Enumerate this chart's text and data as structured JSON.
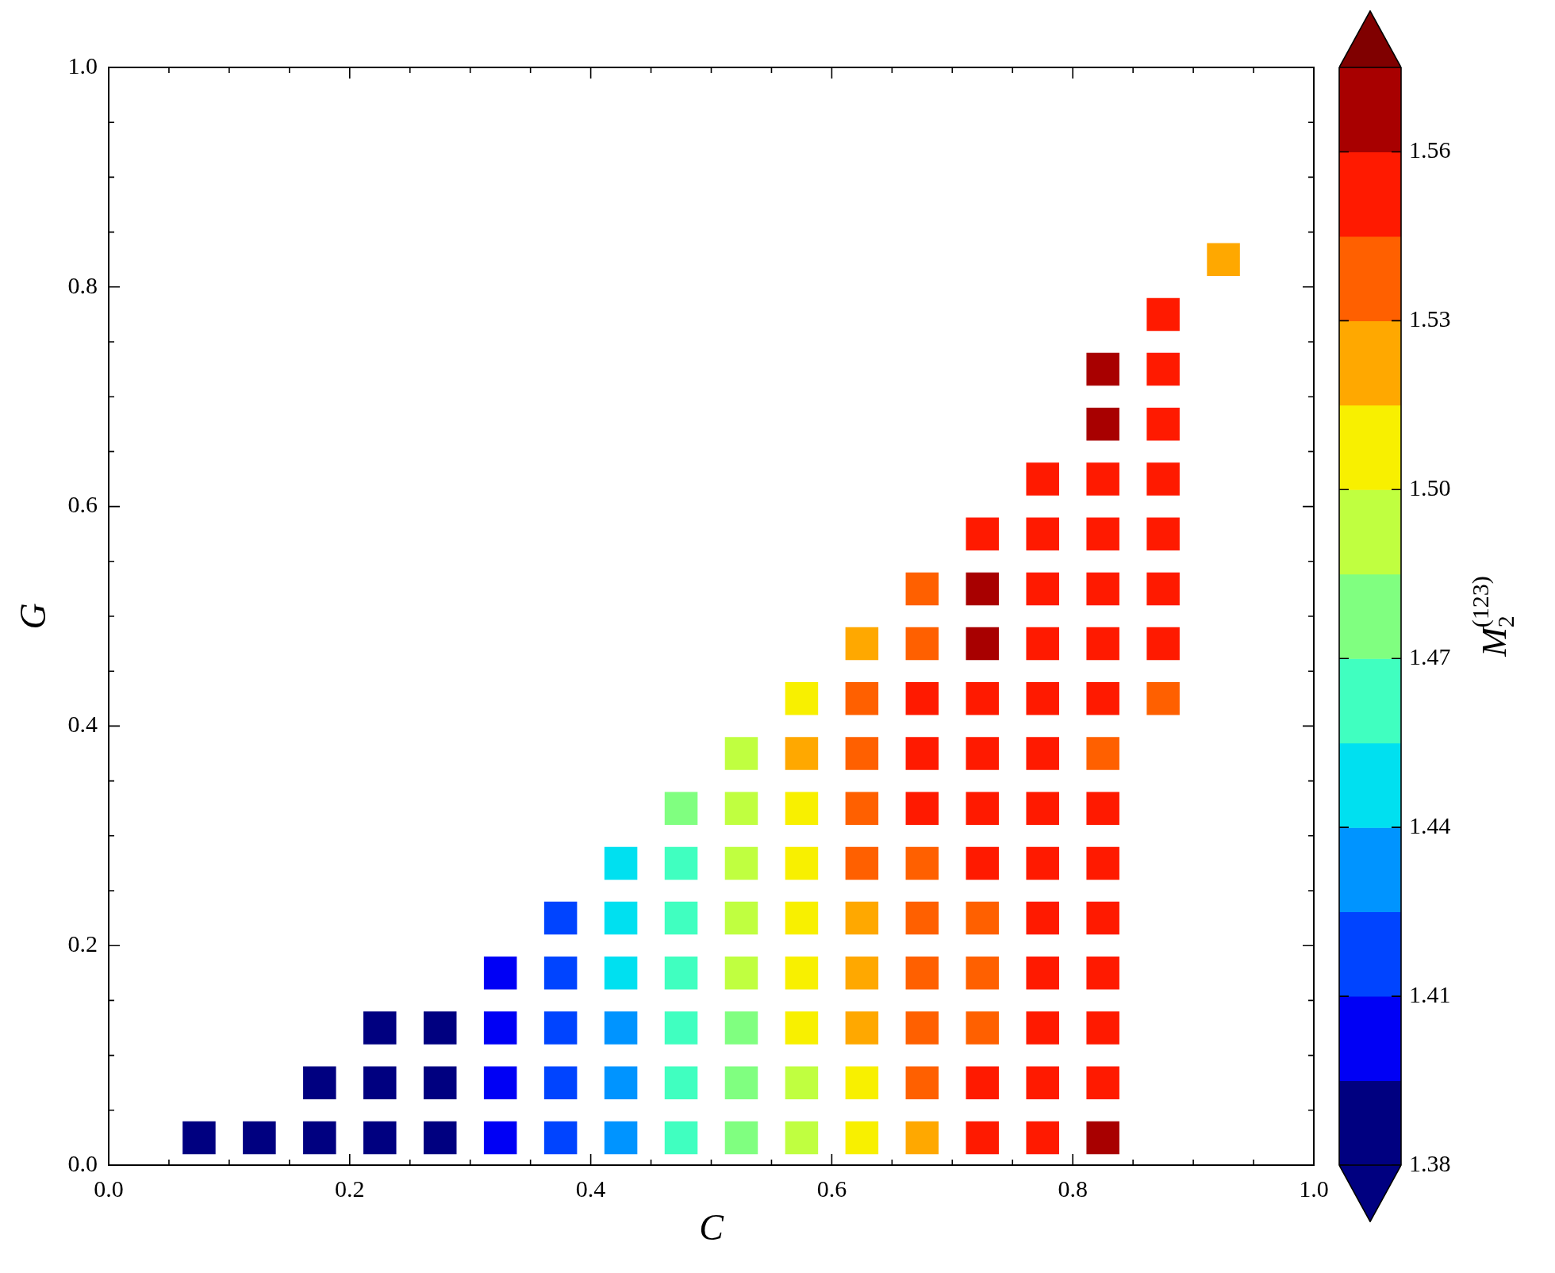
{
  "chart_data": {
    "type": "scatter",
    "xlabel": "C",
    "ylabel": "G",
    "clabel": "M$_{2}$$^{(123)}$",
    "marker": "square",
    "xlim": [
      0,
      1
    ],
    "ylim": [
      0,
      1
    ],
    "xticks": [
      {
        "value": 0,
        "label": "0.0"
      },
      {
        "value": 0.05,
        "label": null
      },
      {
        "value": 0.1,
        "label": null
      },
      {
        "value": 0.15,
        "label": null
      },
      0.2,
      {
        "value": 0.25,
        "label": null
      },
      {
        "value": 0.3,
        "label": null
      },
      {
        "value": 0.35,
        "label": null
      },
      0.4,
      {
        "value": 0.45,
        "label": null
      },
      {
        "value": 0.5,
        "label": null
      },
      {
        "value": 0.55,
        "label": null
      },
      0.6,
      {
        "value": 0.65,
        "label": null
      },
      {
        "value": 0.7,
        "label": null
      },
      {
        "value": 0.75,
        "label": null
      },
      0.8,
      {
        "value": 0.85,
        "label": null
      },
      {
        "value": 0.9,
        "label": null
      },
      {
        "value": 0.95,
        "label": null
      },
      {
        "value": 1,
        "label": "1.0"
      }
    ],
    "yticks": [
      {
        "value": 0,
        "label": "0.0"
      },
      {
        "value": 0.05,
        "label": null
      },
      {
        "value": 0.1,
        "label": null
      },
      {
        "value": 0.15,
        "label": null
      },
      0.2,
      {
        "value": 0.25,
        "label": null
      },
      {
        "value": 0.3,
        "label": null
      },
      {
        "value": 0.35,
        "label": null
      },
      0.4,
      {
        "value": 0.45,
        "label": null
      },
      {
        "value": 0.5,
        "label": null
      },
      {
        "value": 0.55,
        "label": null
      },
      0.6,
      {
        "value": 0.65,
        "label": null
      },
      {
        "value": 0.7,
        "label": null
      },
      {
        "value": 0.75,
        "label": null
      },
      0.8,
      {
        "value": 0.85,
        "label": null
      },
      {
        "value": 0.9,
        "label": null
      },
      {
        "value": 0.95,
        "label": null
      },
      {
        "value": 1,
        "label": "1.0"
      }
    ],
    "clim": [
      1.38,
      1.575
    ],
    "cticks": [
      1.38,
      1.41,
      1.44,
      1.47,
      {
        "value": 1.5,
        "label": "1.50"
      },
      1.53,
      1.56
    ],
    "x": [
      0.925,
      0.875,
      0.825,
      0.875,
      0.825,
      0.875,
      0.775,
      0.825,
      0.875,
      0.725,
      0.775,
      0.825,
      0.875,
      0.675,
      0.725,
      0.775,
      0.825,
      0.875,
      0.625,
      0.675,
      0.725,
      0.775,
      0.825,
      0.875,
      0.575,
      0.625,
      0.675,
      0.725,
      0.775,
      0.825,
      0.875,
      0.525,
      0.575,
      0.625,
      0.675,
      0.725,
      0.775,
      0.825,
      0.475,
      0.525,
      0.575,
      0.625,
      0.675,
      0.725,
      0.775,
      0.825,
      0.425,
      0.475,
      0.525,
      0.575,
      0.625,
      0.675,
      0.725,
      0.775,
      0.825,
      0.375,
      0.425,
      0.475,
      0.525,
      0.575,
      0.625,
      0.675,
      0.725,
      0.775,
      0.825,
      0.325,
      0.375,
      0.425,
      0.475,
      0.525,
      0.575,
      0.625,
      0.675,
      0.725,
      0.775,
      0.825,
      0.225,
      0.275,
      0.325,
      0.375,
      0.425,
      0.475,
      0.525,
      0.575,
      0.625,
      0.675,
      0.725,
      0.775,
      0.825,
      0.175,
      0.225,
      0.275,
      0.325,
      0.375,
      0.425,
      0.475,
      0.525,
      0.575,
      0.625,
      0.675,
      0.725,
      0.775,
      0.825,
      0.075,
      0.125,
      0.175,
      0.225,
      0.275,
      0.325,
      0.375,
      0.425,
      0.475,
      0.525,
      0.575,
      0.625,
      0.675,
      0.725,
      0.775,
      0.825
    ],
    "values": [
      0.825,
      0.775,
      0.725,
      0.725,
      0.675,
      0.675,
      0.625,
      0.625,
      0.625,
      0.575,
      0.575,
      0.575,
      0.575,
      0.525,
      0.525,
      0.525,
      0.525,
      0.525,
      0.475,
      0.475,
      0.475,
      0.475,
      0.475,
      0.475,
      0.425,
      0.425,
      0.425,
      0.425,
      0.425,
      0.425,
      0.425,
      0.375,
      0.375,
      0.375,
      0.375,
      0.375,
      0.375,
      0.375,
      0.325,
      0.325,
      0.325,
      0.325,
      0.325,
      0.325,
      0.325,
      0.325,
      0.275,
      0.275,
      0.275,
      0.275,
      0.275,
      0.275,
      0.275,
      0.275,
      0.275,
      0.225,
      0.225,
      0.225,
      0.225,
      0.225,
      0.225,
      0.225,
      0.225,
      0.225,
      0.225,
      0.175,
      0.175,
      0.175,
      0.175,
      0.175,
      0.175,
      0.175,
      0.175,
      0.175,
      0.175,
      0.175,
      0.125,
      0.125,
      0.125,
      0.125,
      0.125,
      0.125,
      0.125,
      0.125,
      0.125,
      0.125,
      0.125,
      0.125,
      0.125,
      0.075,
      0.075,
      0.075,
      0.075,
      0.075,
      0.075,
      0.075,
      0.075,
      0.075,
      0.075,
      0.075,
      0.075,
      0.075,
      0.075,
      0.025,
      0.025,
      0.025,
      0.025,
      0.025,
      0.025,
      0.025,
      0.025,
      0.025,
      0.025,
      0.025,
      0.025,
      0.025,
      0.025,
      0.025,
      0.025
    ],
    "cvalues": [
      1.523,
      1.553,
      1.568,
      1.553,
      1.568,
      1.553,
      1.553,
      1.553,
      1.553,
      1.553,
      1.553,
      1.553,
      1.553,
      1.538,
      1.568,
      1.553,
      1.553,
      1.553,
      1.523,
      1.538,
      1.568,
      1.553,
      1.553,
      1.553,
      1.508,
      1.538,
      1.553,
      1.553,
      1.553,
      1.553,
      1.538,
      1.493,
      1.523,
      1.538,
      1.553,
      1.553,
      1.553,
      1.538,
      1.478,
      1.493,
      1.508,
      1.538,
      1.553,
      1.553,
      1.553,
      1.553,
      1.448,
      1.463,
      1.493,
      1.508,
      1.538,
      1.538,
      1.553,
      1.553,
      1.553,
      1.418,
      1.448,
      1.463,
      1.493,
      1.508,
      1.523,
      1.538,
      1.538,
      1.553,
      1.553,
      1.403,
      1.418,
      1.448,
      1.463,
      1.493,
      1.508,
      1.523,
      1.538,
      1.538,
      1.553,
      1.553,
      1.38,
      1.38,
      1.403,
      1.418,
      1.433,
      1.463,
      1.478,
      1.508,
      1.523,
      1.538,
      1.538,
      1.553,
      1.553,
      1.38,
      1.38,
      1.38,
      1.403,
      1.418,
      1.433,
      1.463,
      1.478,
      1.493,
      1.508,
      1.538,
      1.553,
      1.553,
      1.553,
      1.38,
      1.38,
      1.38,
      1.38,
      1.38,
      1.403,
      1.418,
      1.433,
      1.463,
      1.478,
      1.493,
      1.508,
      1.523,
      1.553,
      1.553,
      1.568
    ]
  }
}
